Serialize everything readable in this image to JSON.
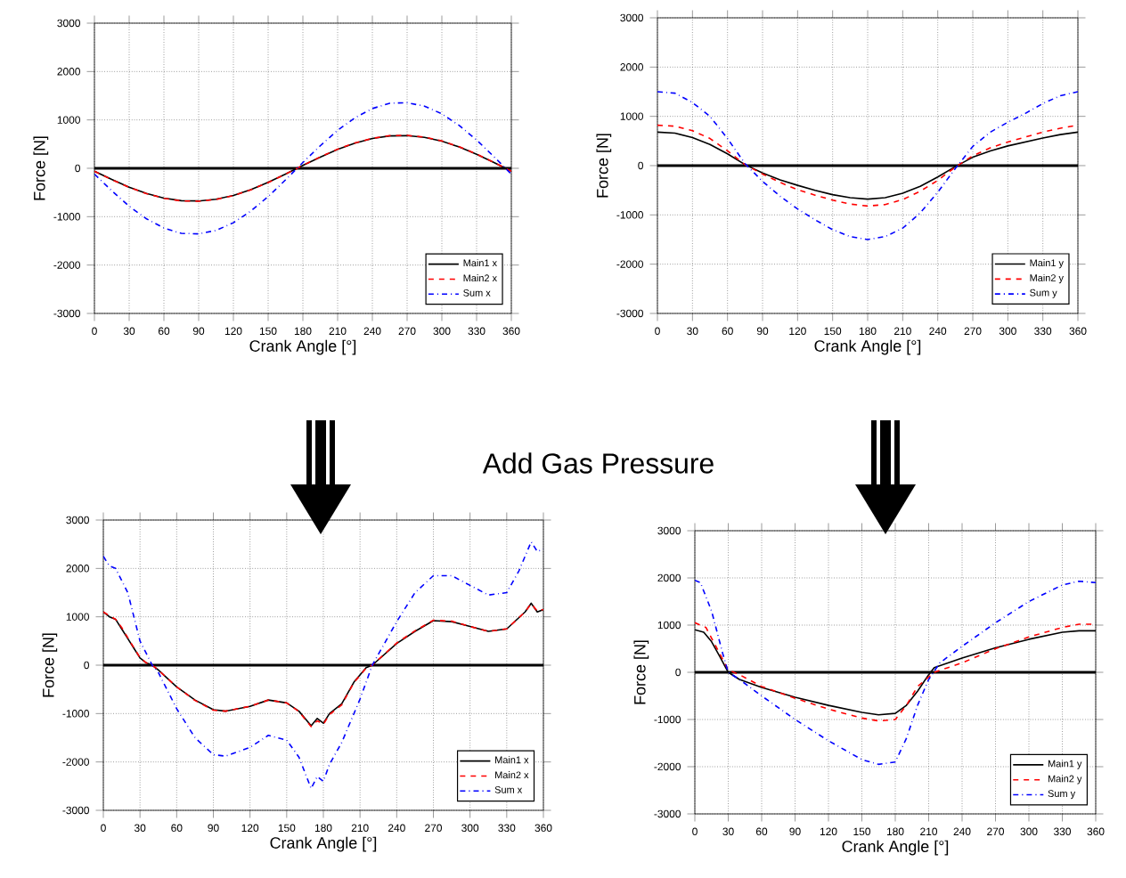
{
  "chart_data": [
    {
      "type": "line",
      "xlabel": "Crank Angle [°]",
      "ylabel": "Force [N]",
      "xlim": [
        0,
        360
      ],
      "ylim": [
        -3000,
        3000
      ],
      "xticks": [
        0,
        30,
        60,
        90,
        120,
        150,
        180,
        210,
        240,
        270,
        300,
        330,
        360
      ],
      "yticks": [
        -3000,
        -2000,
        -1000,
        0,
        1000,
        2000,
        3000
      ],
      "grid": true,
      "legend": "bottom right",
      "ref_lines": [
        {
          "axis": "y",
          "value": 0,
          "color": "#000000"
        }
      ],
      "series": [
        {
          "name": "Main1 x",
          "color": "#000000",
          "line_style": "solid",
          "x": [
            0,
            15,
            30,
            45,
            60,
            75,
            90,
            105,
            120,
            135,
            150,
            165,
            180,
            195,
            210,
            225,
            240,
            255,
            270,
            285,
            300,
            315,
            330,
            345,
            360
          ],
          "values": [
            -60,
            -230,
            -390,
            -520,
            -615,
            -670,
            -675,
            -640,
            -560,
            -440,
            -290,
            -120,
            60,
            230,
            390,
            520,
            615,
            670,
            675,
            640,
            560,
            440,
            290,
            120,
            -60
          ]
        },
        {
          "name": "Main2 x",
          "color": "#ff0000",
          "line_style": "dashed",
          "x": [
            0,
            15,
            30,
            45,
            60,
            75,
            90,
            105,
            120,
            135,
            150,
            165,
            180,
            195,
            210,
            225,
            240,
            255,
            270,
            285,
            300,
            315,
            330,
            345,
            360
          ],
          "values": [
            -60,
            -235,
            -395,
            -525,
            -620,
            -675,
            -680,
            -645,
            -565,
            -445,
            -295,
            -120,
            60,
            235,
            395,
            525,
            620,
            675,
            680,
            645,
            565,
            445,
            295,
            120,
            -60
          ]
        },
        {
          "name": "Sum x",
          "color": "#0000ff",
          "line_style": "dashdot",
          "x": [
            0,
            15,
            30,
            45,
            60,
            75,
            90,
            105,
            120,
            135,
            150,
            165,
            180,
            195,
            210,
            225,
            240,
            255,
            270,
            285,
            300,
            315,
            330,
            345,
            360
          ],
          "values": [
            -120,
            -465,
            -785,
            -1045,
            -1235,
            -1345,
            -1355,
            -1285,
            -1125,
            -885,
            -585,
            -240,
            120,
            465,
            785,
            1045,
            1235,
            1345,
            1355,
            1285,
            1125,
            885,
            585,
            240,
            -120
          ]
        }
      ]
    },
    {
      "type": "line",
      "xlabel": "Crank Angle [°]",
      "ylabel": "Force [N]",
      "xlim": [
        0,
        360
      ],
      "ylim": [
        -3000,
        3000
      ],
      "xticks": [
        0,
        30,
        60,
        90,
        120,
        150,
        180,
        210,
        240,
        270,
        300,
        330,
        360
      ],
      "yticks": [
        -3000,
        -2000,
        -1000,
        0,
        1000,
        2000,
        3000
      ],
      "grid": true,
      "legend": "bottom right",
      "ref_lines": [
        {
          "axis": "y",
          "value": 0,
          "color": "#000000"
        }
      ],
      "series": [
        {
          "name": "Main1 y",
          "color": "#000000",
          "line_style": "solid",
          "x": [
            0,
            15,
            30,
            45,
            60,
            75,
            90,
            105,
            120,
            135,
            150,
            165,
            180,
            195,
            210,
            225,
            240,
            255,
            270,
            285,
            300,
            315,
            330,
            345,
            360
          ],
          "values": [
            680,
            660,
            570,
            430,
            240,
            20,
            -150,
            -290,
            -400,
            -500,
            -590,
            -650,
            -680,
            -650,
            -560,
            -420,
            -230,
            -20,
            170,
            300,
            400,
            480,
            560,
            630,
            680
          ]
        },
        {
          "name": "Main2 y",
          "color": "#ff0000",
          "line_style": "dashed",
          "x": [
            0,
            15,
            30,
            45,
            60,
            75,
            90,
            105,
            120,
            135,
            150,
            165,
            180,
            195,
            210,
            225,
            240,
            255,
            270,
            285,
            300,
            315,
            330,
            345,
            360
          ],
          "values": [
            820,
            800,
            710,
            550,
            300,
            20,
            -170,
            -340,
            -490,
            -600,
            -700,
            -780,
            -820,
            -790,
            -690,
            -520,
            -300,
            -30,
            200,
            360,
            480,
            580,
            680,
            760,
            820
          ]
        },
        {
          "name": "Sum y",
          "color": "#0000ff",
          "line_style": "dashdot",
          "x": [
            0,
            15,
            30,
            45,
            60,
            75,
            90,
            105,
            120,
            135,
            150,
            165,
            180,
            195,
            210,
            225,
            240,
            255,
            270,
            285,
            300,
            315,
            330,
            345,
            360
          ],
          "values": [
            1500,
            1470,
            1280,
            1000,
            550,
            40,
            -320,
            -620,
            -880,
            -1100,
            -1300,
            -1440,
            -1500,
            -1440,
            -1270,
            -960,
            -540,
            -60,
            390,
            680,
            880,
            1060,
            1260,
            1420,
            1500
          ]
        }
      ]
    },
    {
      "type": "line",
      "xlabel": "Crank Angle [°]",
      "ylabel": "Force [N]",
      "xlim": [
        0,
        360
      ],
      "ylim": [
        -3000,
        3000
      ],
      "xticks": [
        0,
        30,
        60,
        90,
        120,
        150,
        180,
        210,
        240,
        270,
        300,
        330,
        360
      ],
      "yticks": [
        -3000,
        -2000,
        -1000,
        0,
        1000,
        2000,
        3000
      ],
      "grid": true,
      "legend": "bottom right",
      "ref_lines": [
        {
          "axis": "y",
          "value": 0,
          "color": "#000000"
        }
      ],
      "annotations": [
        "Add Gas Pressure"
      ],
      "series": [
        {
          "name": "Main1 x",
          "color": "#000000",
          "line_style": "solid",
          "x": [
            0,
            5,
            10,
            15,
            20,
            25,
            30,
            35,
            40,
            45,
            60,
            75,
            90,
            100,
            120,
            135,
            150,
            160,
            170,
            175,
            180,
            185,
            195,
            205,
            215,
            220,
            240,
            255,
            270,
            285,
            300,
            315,
            330,
            345,
            350,
            355,
            360
          ],
          "values": [
            1100,
            1000,
            950,
            750,
            550,
            350,
            150,
            50,
            0,
            -100,
            -450,
            -720,
            -920,
            -950,
            -850,
            -720,
            -780,
            -950,
            -1250,
            -1100,
            -1200,
            -1000,
            -800,
            -350,
            -50,
            0,
            450,
            700,
            920,
            900,
            800,
            700,
            750,
            1100,
            1280,
            1100,
            1150
          ]
        },
        {
          "name": "Main2 x",
          "color": "#ff0000",
          "line_style": "dashed",
          "x": [
            0,
            5,
            10,
            15,
            20,
            25,
            30,
            35,
            40,
            45,
            60,
            75,
            90,
            100,
            120,
            135,
            150,
            160,
            170,
            175,
            180,
            185,
            195,
            205,
            215,
            220,
            240,
            255,
            270,
            285,
            300,
            315,
            330,
            345,
            350,
            355,
            360
          ],
          "values": [
            1100,
            1020,
            950,
            780,
            570,
            360,
            160,
            50,
            0,
            -100,
            -450,
            -730,
            -930,
            -950,
            -850,
            -720,
            -780,
            -960,
            -1270,
            -1150,
            -1220,
            -1020,
            -820,
            -360,
            -60,
            0,
            460,
            710,
            930,
            910,
            800,
            700,
            750,
            1100,
            1270,
            1120,
            1150
          ]
        },
        {
          "name": "Sum x",
          "color": "#0000ff",
          "line_style": "dashdot",
          "x": [
            0,
            5,
            10,
            20,
            30,
            40,
            45,
            60,
            75,
            90,
            100,
            120,
            135,
            150,
            160,
            170,
            175,
            180,
            185,
            195,
            210,
            220,
            240,
            255,
            270,
            285,
            300,
            315,
            330,
            340,
            350,
            355,
            360
          ],
          "values": [
            2250,
            2050,
            2000,
            1500,
            500,
            0,
            -150,
            -900,
            -1500,
            -1850,
            -1880,
            -1700,
            -1450,
            -1550,
            -1900,
            -2550,
            -2300,
            -2400,
            -2050,
            -1600,
            -700,
            0,
            900,
            1500,
            1850,
            1850,
            1650,
            1450,
            1500,
            1950,
            2550,
            2350,
            2400
          ]
        }
      ]
    },
    {
      "type": "line",
      "xlabel": "Crank Angle [°]",
      "ylabel": "Force [N]",
      "xlim": [
        0,
        360
      ],
      "ylim": [
        -3000,
        3000
      ],
      "xticks": [
        0,
        30,
        60,
        90,
        120,
        150,
        180,
        210,
        240,
        270,
        300,
        330,
        360
      ],
      "yticks": [
        -3000,
        -2000,
        -1000,
        0,
        1000,
        2000,
        3000
      ],
      "grid": true,
      "legend": "bottom right",
      "ref_lines": [
        {
          "axis": "y",
          "value": 0,
          "color": "#000000"
        }
      ],
      "series": [
        {
          "name": "Main1 y",
          "color": "#000000",
          "line_style": "solid",
          "x": [
            0,
            8,
            15,
            22,
            30,
            40,
            60,
            90,
            120,
            150,
            165,
            180,
            190,
            200,
            210,
            215,
            240,
            270,
            300,
            330,
            345,
            360
          ],
          "values": [
            900,
            850,
            650,
            350,
            0,
            -150,
            -320,
            -530,
            -700,
            -850,
            -900,
            -870,
            -700,
            -400,
            -50,
            100,
            300,
            520,
            700,
            850,
            880,
            880
          ]
        },
        {
          "name": "Main2 y",
          "color": "#ff0000",
          "line_style": "dashed",
          "x": [
            0,
            10,
            20,
            30,
            40,
            60,
            90,
            120,
            150,
            165,
            180,
            190,
            200,
            210,
            215,
            240,
            270,
            300,
            330,
            345,
            360
          ],
          "values": [
            1050,
            950,
            500,
            50,
            -50,
            -300,
            -550,
            -780,
            -970,
            -1030,
            -1000,
            -700,
            -300,
            -100,
            0,
            200,
            500,
            750,
            950,
            1020,
            1020
          ]
        },
        {
          "name": "Sum y",
          "color": "#0000ff",
          "line_style": "dashdot",
          "x": [
            0,
            5,
            15,
            25,
            30,
            40,
            60,
            90,
            120,
            150,
            165,
            180,
            190,
            200,
            210,
            220,
            240,
            270,
            300,
            330,
            345,
            360
          ],
          "values": [
            1950,
            1900,
            1300,
            400,
            0,
            -150,
            -500,
            -1000,
            -1450,
            -1850,
            -1950,
            -1900,
            -1400,
            -700,
            -150,
            200,
            550,
            1050,
            1500,
            1850,
            1930,
            1900
          ]
        }
      ]
    }
  ]
}
